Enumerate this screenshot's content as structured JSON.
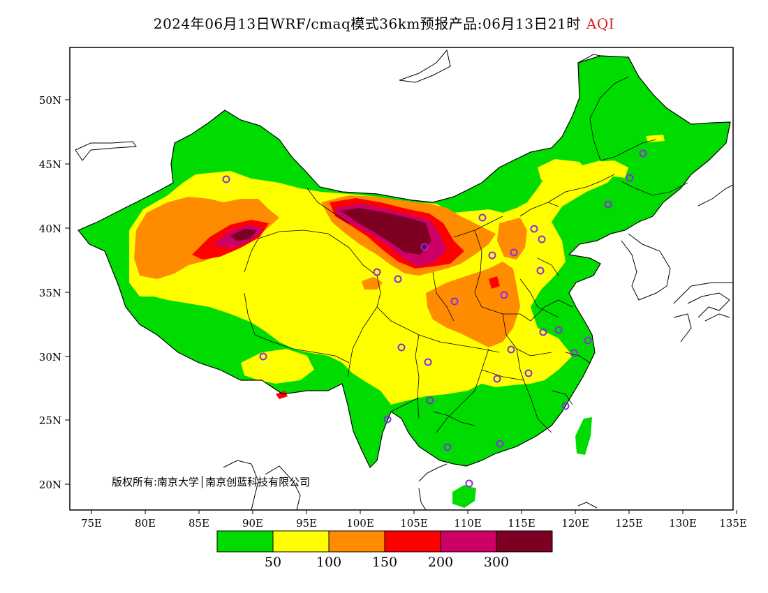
{
  "title": {
    "main": "2024年06月13日WRF/cmaq模式36km预报产品:06月13日21时",
    "highlight": "AQI"
  },
  "axes": {
    "lat_ticks": [
      "50N",
      "45N",
      "40N",
      "35N",
      "30N",
      "25N",
      "20N"
    ],
    "lon_ticks": [
      "75E",
      "80E",
      "85E",
      "90E",
      "95E",
      "100E",
      "105E",
      "110E",
      "115E",
      "120E",
      "125E",
      "130E",
      "135E"
    ]
  },
  "legend": {
    "colors": [
      "#00dc00",
      "#ffff00",
      "#ff8c00",
      "#ff0000",
      "#cc0066",
      "#7d0023"
    ],
    "labels": [
      "50",
      "100",
      "150",
      "200",
      "300"
    ]
  },
  "copyright": "版权所有:南京大学│南京创蓝科技有限公司",
  "colors": {
    "good": "#00dc00",
    "moderate": "#ffff00",
    "sensitive": "#ff8c00",
    "unhealthy": "#ff0000",
    "very_unhealthy": "#cc0066",
    "hazardous": "#7d0023",
    "station": "#8a2be2"
  }
}
